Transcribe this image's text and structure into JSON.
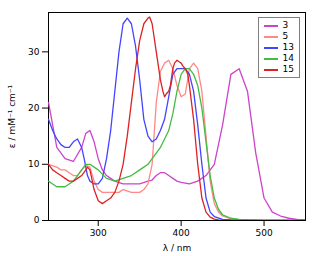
{
  "chart_data": {
    "type": "line",
    "xlabel": "λ / nm",
    "ylabel": "ε / mM⁻¹ cm⁻¹",
    "xlim": [
      240,
      550
    ],
    "ylim": [
      0,
      37
    ],
    "xticks": [
      300,
      400,
      500
    ],
    "yticks": [
      0,
      10,
      20,
      30
    ],
    "grid": false,
    "legend": "upper right",
    "series": [
      {
        "name": "3",
        "color": "#cc44cc",
        "x": [
          240,
          250,
          260,
          270,
          280,
          285,
          290,
          295,
          300,
          305,
          310,
          315,
          320,
          330,
          340,
          350,
          360,
          365,
          370,
          375,
          380,
          385,
          390,
          395,
          400,
          410,
          420,
          430,
          440,
          450,
          460,
          470,
          480,
          490,
          500,
          510,
          520,
          530,
          540,
          550
        ],
        "values": [
          21,
          13,
          11,
          10.5,
          13,
          15.5,
          16,
          14,
          11,
          9,
          8,
          7.5,
          7,
          6.5,
          6.5,
          6.5,
          7,
          7.2,
          8,
          8.5,
          8.5,
          8,
          7.5,
          7,
          6.8,
          6.5,
          7,
          8,
          10,
          17,
          26,
          27,
          23,
          12,
          4,
          1.5,
          0.8,
          0.4,
          0.2,
          0.1
        ]
      },
      {
        "name": "5",
        "color": "#ff8888",
        "x": [
          240,
          250,
          255,
          260,
          265,
          270,
          275,
          280,
          285,
          290,
          295,
          300,
          305,
          310,
          315,
          320,
          325,
          330,
          340,
          350,
          355,
          360,
          365,
          370,
          375,
          380,
          385,
          390,
          395,
          400,
          405,
          410,
          415,
          420,
          425,
          430,
          435,
          440,
          445,
          450,
          460,
          470,
          480,
          490,
          500,
          510,
          520,
          530,
          540,
          550
        ],
        "values": [
          10,
          9.5,
          9,
          9,
          8.5,
          8,
          8,
          9,
          9.8,
          9.5,
          7,
          5.5,
          5,
          5,
          5,
          5,
          5,
          5.5,
          5,
          5,
          5.5,
          6.5,
          10,
          21,
          26.5,
          28,
          28.5,
          27,
          24,
          22,
          22.5,
          27,
          28,
          27,
          23,
          15,
          7,
          3,
          1.5,
          0.8,
          0.3,
          0.15,
          0.1,
          0.05,
          0.02,
          0.01,
          0.01,
          0.01,
          0.01,
          0.01
        ]
      },
      {
        "name": "13",
        "color": "#4444ff",
        "x": [
          240,
          245,
          250,
          255,
          260,
          265,
          270,
          275,
          280,
          283,
          287,
          290,
          295,
          300,
          305,
          310,
          315,
          320,
          325,
          330,
          335,
          340,
          345,
          350,
          355,
          360,
          365,
          370,
          375,
          380,
          385,
          390,
          395,
          400,
          405,
          410,
          415,
          420,
          425,
          430,
          435,
          440,
          450,
          460,
          470,
          480,
          490,
          500,
          510,
          520,
          530,
          540,
          550
        ],
        "values": [
          18,
          16,
          14.5,
          13.5,
          13,
          13,
          14,
          14.5,
          13,
          11,
          8,
          7,
          6.5,
          6.5,
          7.5,
          11,
          16,
          23,
          30,
          35,
          36,
          35,
          31,
          25,
          18,
          15,
          14,
          14.5,
          16,
          18,
          22,
          26,
          27,
          27,
          27,
          26,
          23,
          17,
          10,
          4,
          1.5,
          0.7,
          0.2,
          0.1,
          0.05,
          0.02,
          0.01,
          0.01,
          0.01,
          0.01,
          0.01,
          0.01,
          0.01
        ]
      },
      {
        "name": "14",
        "color": "#44bb44",
        "x": [
          240,
          245,
          250,
          255,
          260,
          265,
          270,
          275,
          280,
          285,
          290,
          295,
          300,
          310,
          320,
          330,
          340,
          350,
          355,
          360,
          365,
          370,
          375,
          380,
          385,
          390,
          395,
          400,
          405,
          410,
          415,
          420,
          425,
          430,
          435,
          440,
          445,
          450,
          460,
          470,
          480,
          490,
          500,
          510,
          520,
          530,
          540,
          550
        ],
        "values": [
          7,
          6.5,
          6,
          6,
          6,
          6.5,
          7,
          8,
          9,
          10,
          10,
          9.5,
          9,
          7.5,
          7,
          7.5,
          8,
          9,
          9.5,
          10,
          11,
          12,
          13,
          14.5,
          16,
          19,
          23,
          26,
          27,
          27,
          26,
          24,
          20,
          14,
          8,
          4,
          2,
          1,
          0.4,
          0.2,
          0.1,
          0.05,
          0.02,
          0.01,
          0.01,
          0.01,
          0.01,
          0.01
        ]
      },
      {
        "name": "15",
        "color": "#dd2222",
        "x": [
          240,
          245,
          250,
          255,
          260,
          265,
          270,
          275,
          280,
          285,
          287,
          290,
          295,
          300,
          305,
          310,
          315,
          320,
          325,
          330,
          335,
          340,
          345,
          350,
          355,
          360,
          362,
          365,
          367,
          370,
          373,
          375,
          378,
          380,
          382,
          385,
          387,
          390,
          392,
          395,
          398,
          400,
          402,
          405,
          408,
          410,
          415,
          420,
          425,
          430,
          435,
          440,
          445,
          450,
          460,
          470,
          480,
          490,
          500,
          510,
          520,
          530,
          540,
          550
        ],
        "values": [
          10,
          9,
          8.5,
          8,
          7.5,
          7,
          7,
          7.5,
          8,
          9,
          9.5,
          9,
          5.5,
          3.5,
          3,
          3.5,
          4,
          5,
          7,
          10,
          15,
          21,
          27,
          32,
          35,
          36,
          36.2,
          35,
          33,
          30,
          27,
          25,
          23,
          22,
          22.5,
          23,
          24,
          27,
          28,
          28.5,
          28.2,
          28,
          27.5,
          27,
          26,
          24,
          18,
          10,
          4,
          1.5,
          0.6,
          0.25,
          0.1,
          0.05,
          0.02,
          0.01,
          0.01,
          0.01,
          0.01,
          0.01,
          0.01,
          0.01,
          0.01,
          0.01
        ]
      }
    ]
  }
}
